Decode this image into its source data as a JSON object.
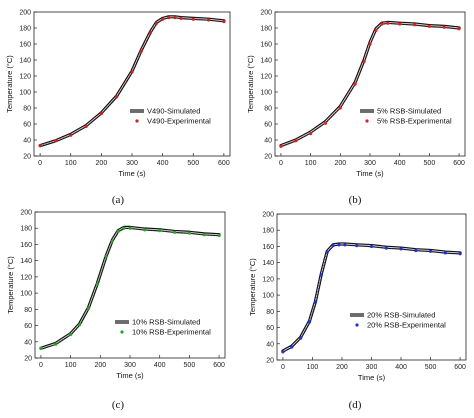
{
  "chart_data": [
    {
      "type": "line",
      "panel_label": "(a)",
      "xlabel": "Time (s)",
      "ylabel": "Temperature (°C)",
      "xlim": [
        -20,
        620
      ],
      "ylim": [
        20,
        200
      ],
      "xticks": [
        0,
        100,
        200,
        300,
        400,
        500,
        600
      ],
      "yticks": [
        20,
        40,
        60,
        80,
        100,
        120,
        140,
        160,
        180,
        200
      ],
      "legend_position": "right",
      "series": [
        {
          "name": "V490-Simulated",
          "style": "line",
          "color": "#111111",
          "x": [
            0,
            50,
            100,
            150,
            200,
            250,
            300,
            330,
            360,
            380,
            400,
            420,
            440,
            460,
            500,
            550,
            600
          ],
          "y": [
            33,
            39,
            47,
            58,
            74,
            95,
            126,
            152,
            175,
            187,
            192,
            194,
            194,
            193,
            192,
            191,
            189
          ]
        },
        {
          "name": "V490-Experimental",
          "style": "markers",
          "color": "#cc2222",
          "x": [
            0,
            50,
            100,
            150,
            200,
            250,
            300,
            330,
            360,
            380,
            400,
            420,
            440,
            460,
            500,
            550,
            600
          ],
          "y": [
            33,
            39,
            46,
            57,
            73,
            94,
            125,
            151,
            174,
            186,
            191,
            193,
            193,
            192,
            191,
            190,
            188
          ]
        }
      ]
    },
    {
      "type": "line",
      "panel_label": "(b)",
      "xlabel": "Time (s)",
      "ylabel": "Temperature (°C)",
      "xlim": [
        -20,
        620
      ],
      "ylim": [
        20,
        200
      ],
      "xticks": [
        0,
        100,
        200,
        300,
        400,
        500,
        600
      ],
      "yticks": [
        20,
        40,
        60,
        80,
        100,
        120,
        140,
        160,
        180,
        200
      ],
      "legend_position": "right",
      "series": [
        {
          "name": "5% RSB-Simulated",
          "style": "line",
          "color": "#111111",
          "x": [
            0,
            50,
            100,
            150,
            200,
            250,
            280,
            300,
            320,
            340,
            360,
            400,
            450,
            500,
            550,
            600
          ],
          "y": [
            33,
            40,
            50,
            63,
            82,
            112,
            140,
            162,
            179,
            186,
            187,
            186,
            185,
            183,
            182,
            180
          ]
        },
        {
          "name": "5% RSB-Experimental",
          "style": "markers",
          "color": "#dd2222",
          "x": [
            0,
            50,
            100,
            150,
            200,
            250,
            280,
            300,
            320,
            340,
            360,
            400,
            450,
            500,
            550,
            600
          ],
          "y": [
            32,
            39,
            48,
            61,
            80,
            110,
            138,
            160,
            177,
            185,
            186,
            185,
            184,
            182,
            181,
            179
          ]
        }
      ]
    },
    {
      "type": "line",
      "panel_label": "(c)",
      "xlabel": "Time (s)",
      "ylabel": "Temperature (°C)",
      "xlim": [
        -20,
        620
      ],
      "ylim": [
        20,
        200
      ],
      "xticks": [
        0,
        100,
        200,
        300,
        400,
        500,
        600
      ],
      "yticks": [
        20,
        40,
        60,
        80,
        100,
        120,
        140,
        160,
        180,
        200
      ],
      "legend_position": "bottom-center",
      "series": [
        {
          "name": "10% RSB-Simulated",
          "style": "line",
          "color": "#111111",
          "x": [
            0,
            50,
            100,
            130,
            160,
            190,
            220,
            240,
            260,
            280,
            300,
            350,
            400,
            450,
            500,
            550,
            600
          ],
          "y": [
            32,
            38,
            50,
            62,
            82,
            112,
            146,
            165,
            177,
            181,
            181,
            179,
            178,
            176,
            175,
            173,
            172
          ]
        },
        {
          "name": "10% RSB-Experimental",
          "style": "markers",
          "color": "#2e9e2e",
          "x": [
            0,
            50,
            100,
            130,
            160,
            190,
            220,
            240,
            260,
            280,
            300,
            350,
            400,
            450,
            500,
            550,
            600
          ],
          "y": [
            32,
            37,
            49,
            61,
            81,
            111,
            145,
            164,
            176,
            180,
            180,
            178,
            177,
            175,
            174,
            172,
            171
          ]
        }
      ]
    },
    {
      "type": "line",
      "panel_label": "(d)",
      "xlabel": "Time (s)",
      "ylabel": "Temperature (°C)",
      "xlim": [
        -20,
        620
      ],
      "ylim": [
        20,
        200
      ],
      "xticks": [
        0,
        100,
        200,
        300,
        400,
        500,
        600
      ],
      "yticks": [
        20,
        40,
        60,
        80,
        100,
        120,
        140,
        160,
        180,
        200
      ],
      "legend_position": "right",
      "series": [
        {
          "name": "20% RSB-Simulated",
          "style": "line",
          "color": "#111111",
          "x": [
            0,
            30,
            60,
            90,
            110,
            130,
            150,
            170,
            190,
            210,
            250,
            300,
            350,
            400,
            450,
            500,
            550,
            600
          ],
          "y": [
            31,
            37,
            48,
            68,
            92,
            126,
            154,
            162,
            163,
            163,
            162,
            161,
            159,
            158,
            156,
            155,
            153,
            152
          ]
        },
        {
          "name": "20% RSB-Experimental",
          "style": "markers",
          "color": "#2233cc",
          "x": [
            0,
            30,
            60,
            90,
            110,
            130,
            150,
            170,
            190,
            210,
            250,
            300,
            350,
            400,
            450,
            500,
            550,
            600
          ],
          "y": [
            30,
            36,
            47,
            67,
            91,
            125,
            153,
            161,
            162,
            162,
            161,
            160,
            158,
            157,
            155,
            154,
            152,
            151
          ]
        }
      ]
    }
  ]
}
